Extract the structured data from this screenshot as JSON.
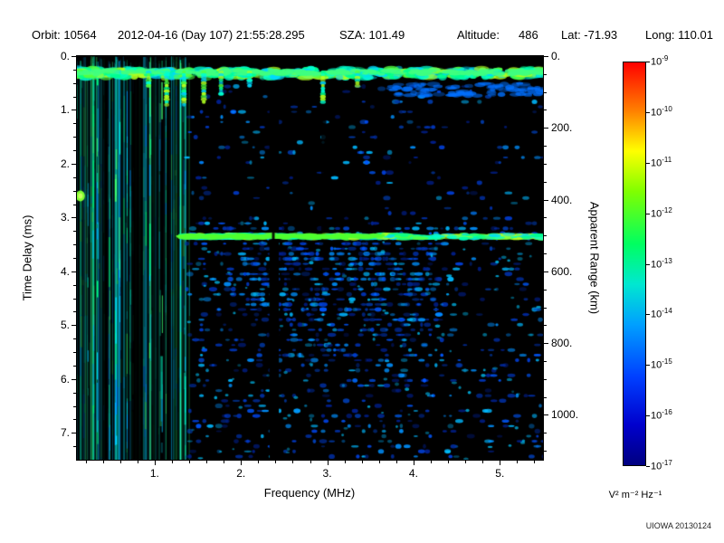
{
  "header": {
    "fields": [
      {
        "text": "Orbit: 10564"
      },
      {
        "text": "2012-04-16 (Day 107) 21:55:28.295"
      },
      {
        "text": "SZA: 101.49"
      },
      {
        "text": "Altitude:"
      },
      {
        "text": "486"
      },
      {
        "text": "Lat: -71.93"
      },
      {
        "text": "Long: 110.01"
      }
    ]
  },
  "watermark": "UIOWA 20130124",
  "chart_data": {
    "type": "heatmap",
    "description": "Radar sounder ionogram: echo spectral density versus frequency and time delay, black background with blue/green echo traces",
    "xlabel": "Frequency (MHz)",
    "ylabel_left": "Time Delay (ms)",
    "ylabel_right": "Apparent Range (km)",
    "x_range_mhz": [
      0.1,
      5.5
    ],
    "x_ticks": [
      {
        "v": 1,
        "label": "1."
      },
      {
        "v": 2,
        "label": "2."
      },
      {
        "v": 3,
        "label": "3."
      },
      {
        "v": 4,
        "label": "4."
      },
      {
        "v": 5,
        "label": "5."
      }
    ],
    "y_range_ms": [
      0,
      7.5
    ],
    "y_ticks": [
      {
        "v": 0,
        "label": "0."
      },
      {
        "v": 1,
        "label": "1."
      },
      {
        "v": 2,
        "label": "2."
      },
      {
        "v": 3,
        "label": "3."
      },
      {
        "v": 4,
        "label": "4."
      },
      {
        "v": 5,
        "label": "5."
      },
      {
        "v": 6,
        "label": "6."
      },
      {
        "v": 7,
        "label": "7."
      }
    ],
    "right_axis": {
      "km_per_ms": 150,
      "ticks": [
        {
          "v": 0,
          "label": "0."
        },
        {
          "v": 200,
          "label": "200."
        },
        {
          "v": 400,
          "label": "400."
        },
        {
          "v": 600,
          "label": "600."
        },
        {
          "v": 800,
          "label": "800."
        },
        {
          "v": 1000,
          "label": "1000."
        }
      ]
    },
    "colorbar": {
      "units_label": "V² m⁻² Hz⁻¹",
      "scale": "log10",
      "max": "1e-9",
      "min": "1e-17",
      "tick_exponents": [
        -9,
        -10,
        -11,
        -12,
        -13,
        -14,
        -15,
        -16,
        -17
      ],
      "colormap": [
        {
          "pos": 0.0,
          "color": "#000080"
        },
        {
          "pos": 0.1,
          "color": "#0000cd"
        },
        {
          "pos": 0.22,
          "color": "#0040ff"
        },
        {
          "pos": 0.35,
          "color": "#00a0ff"
        },
        {
          "pos": 0.45,
          "color": "#00e8d0"
        },
        {
          "pos": 0.55,
          "color": "#00ff60"
        },
        {
          "pos": 0.68,
          "color": "#80ff00"
        },
        {
          "pos": 0.78,
          "color": "#ffff00"
        },
        {
          "pos": 0.88,
          "color": "#ff8000"
        },
        {
          "pos": 1.0,
          "color": "#ff0000"
        }
      ]
    },
    "features": {
      "seed": 20130124,
      "background": "#000000",
      "noise_band_max_mhz": 1.38,
      "surface_band_delay_ms": 0.3,
      "echo_band": {
        "delay_ms": 3.35,
        "start_mhz": 1.32
      },
      "blank_columns_mhz": [
        [
          2.33,
          2.44
        ]
      ],
      "partial_blank_mhz": [
        2.93,
        2.99
      ],
      "bright_spot": {
        "mhz": 0.14,
        "delay_ms": 2.6
      },
      "spike_freqs_mhz": [
        0.93,
        1.14,
        1.34,
        1.57,
        1.77,
        2.1,
        2.95,
        3.35
      ],
      "palette_stripes": [
        "#00e0ff",
        "#00ff88",
        "#0090ff",
        "#40ff70",
        "#00c0ff",
        "#00ffc8"
      ],
      "palette_band": [
        "#00ff90",
        "#00ffd0",
        "#50ff40",
        "#00d8ff",
        "#b0ff20"
      ],
      "palette_scatter": [
        "#0040dd",
        "#0030aa",
        "#0058ff",
        "#0090ff",
        "#002090",
        "#00b8ff"
      ]
    }
  }
}
